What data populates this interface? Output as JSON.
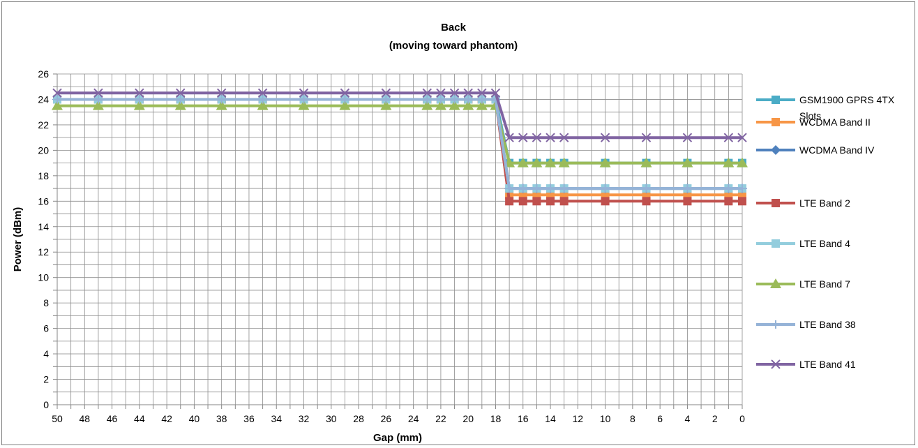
{
  "chart_data": {
    "type": "line",
    "title": "Back",
    "subtitle": "(moving toward phantom)",
    "xlabel": "Gap (mm)",
    "ylabel": "Power (dBm)",
    "xlim": [
      50,
      0
    ],
    "x_reversed": true,
    "x_ticks": [
      50,
      48,
      46,
      44,
      42,
      40,
      38,
      36,
      34,
      32,
      30,
      28,
      26,
      24,
      22,
      20,
      18,
      16,
      14,
      12,
      10,
      8,
      6,
      4,
      2,
      0
    ],
    "ylim": [
      0,
      26
    ],
    "y_ticks": [
      0,
      2,
      4,
      6,
      8,
      10,
      12,
      14,
      16,
      18,
      20,
      22,
      24,
      26
    ],
    "grid": true,
    "legend_position": "right",
    "x": [
      50,
      47,
      44,
      41,
      38,
      35,
      32,
      29,
      26,
      23,
      22,
      21,
      20,
      19,
      18,
      17,
      16,
      15,
      14,
      13,
      10,
      7,
      4,
      1,
      0
    ],
    "series": [
      {
        "name": "GSM1900 GPRS 4TX Slots",
        "color": "#4BACC6",
        "marker": "square",
        "values": [
          24.0,
          24.0,
          24.0,
          24.0,
          24.0,
          24.0,
          24.0,
          24.0,
          24.0,
          24.0,
          24.0,
          24.0,
          24.0,
          24.0,
          24.0,
          19.0,
          19.0,
          19.0,
          19.0,
          19.0,
          19.0,
          19.0,
          19.0,
          19.0,
          19.0
        ]
      },
      {
        "name": "WCDMA Band II",
        "color": "#F79646",
        "marker": "square",
        "values": [
          24.0,
          24.0,
          24.0,
          24.0,
          24.0,
          24.0,
          24.0,
          24.0,
          24.0,
          24.0,
          24.0,
          24.0,
          24.0,
          24.0,
          24.0,
          16.5,
          16.5,
          16.5,
          16.5,
          16.5,
          16.5,
          16.5,
          16.5,
          16.5,
          16.5
        ]
      },
      {
        "name": "WCDMA Band IV",
        "color": "#4F81BD",
        "marker": "diamond",
        "values": [
          24.0,
          24.0,
          24.0,
          24.0,
          24.0,
          24.0,
          24.0,
          24.0,
          24.0,
          24.0,
          24.0,
          24.0,
          24.0,
          24.0,
          24.0,
          17.0,
          17.0,
          17.0,
          17.0,
          17.0,
          17.0,
          17.0,
          17.0,
          17.0,
          17.0
        ]
      },
      {
        "name": "LTE Band 2",
        "color": "#C0504D",
        "marker": "square",
        "values": [
          24.0,
          24.0,
          24.0,
          24.0,
          24.0,
          24.0,
          24.0,
          24.0,
          24.0,
          24.0,
          24.0,
          24.0,
          24.0,
          24.0,
          24.0,
          16.0,
          16.0,
          16.0,
          16.0,
          16.0,
          16.0,
          16.0,
          16.0,
          16.0,
          16.0
        ]
      },
      {
        "name": "LTE Band 4",
        "color": "#93CDDD",
        "marker": "square",
        "values": [
          24.0,
          24.0,
          24.0,
          24.0,
          24.0,
          24.0,
          24.0,
          24.0,
          24.0,
          24.0,
          24.0,
          24.0,
          24.0,
          24.0,
          24.0,
          17.0,
          17.0,
          17.0,
          17.0,
          17.0,
          17.0,
          17.0,
          17.0,
          17.0,
          17.0
        ]
      },
      {
        "name": "LTE Band 7",
        "color": "#9BBB59",
        "marker": "triangle",
        "values": [
          23.5,
          23.5,
          23.5,
          23.5,
          23.5,
          23.5,
          23.5,
          23.5,
          23.5,
          23.5,
          23.5,
          23.5,
          23.5,
          23.5,
          23.5,
          19.0,
          19.0,
          19.0,
          19.0,
          19.0,
          19.0,
          19.0,
          19.0,
          19.0,
          19.0
        ]
      },
      {
        "name": "LTE Band 38",
        "color": "#95B3D7",
        "marker": "plus",
        "values": [
          24.0,
          24.0,
          24.0,
          24.0,
          24.0,
          24.0,
          24.0,
          24.0,
          24.0,
          24.0,
          24.0,
          24.0,
          24.0,
          24.0,
          24.0,
          17.0,
          17.0,
          17.0,
          17.0,
          17.0,
          17.0,
          17.0,
          17.0,
          17.0,
          17.0
        ]
      },
      {
        "name": "LTE Band 41",
        "color": "#8064A2",
        "marker": "x",
        "values": [
          24.5,
          24.5,
          24.5,
          24.5,
          24.5,
          24.5,
          24.5,
          24.5,
          24.5,
          24.5,
          24.5,
          24.5,
          24.5,
          24.5,
          24.5,
          21.0,
          21.0,
          21.0,
          21.0,
          21.0,
          21.0,
          21.0,
          21.0,
          21.0,
          21.0
        ]
      }
    ],
    "legend_lines": [
      [
        "GSM1900 GPRS 4TX",
        "Slots"
      ],
      [
        "WCDMA Band II"
      ],
      [
        "WCDMA Band IV"
      ],
      [
        "LTE Band 2"
      ],
      [
        "LTE Band 4"
      ],
      [
        "LTE Band 7"
      ],
      [
        "LTE Band 38"
      ],
      [
        "LTE Band 41"
      ]
    ]
  }
}
